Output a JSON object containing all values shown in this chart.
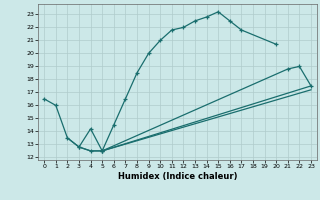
{
  "xlabel": "Humidex (Indice chaleur)",
  "background_color": "#cce8e8",
  "grid_color": "#b0cccc",
  "line_color": "#1a6e6e",
  "xlim": [
    -0.5,
    23.5
  ],
  "ylim": [
    11.8,
    23.8
  ],
  "xticks": [
    0,
    1,
    2,
    3,
    4,
    5,
    6,
    7,
    8,
    9,
    10,
    11,
    12,
    13,
    14,
    15,
    16,
    17,
    18,
    19,
    20,
    21,
    22,
    23
  ],
  "yticks": [
    12,
    13,
    14,
    15,
    16,
    17,
    18,
    19,
    20,
    21,
    22,
    23
  ],
  "s1x": [
    0,
    1,
    2,
    3,
    4,
    5,
    6,
    7,
    8,
    9,
    10,
    11,
    12,
    13,
    14,
    15,
    16,
    17,
    20
  ],
  "s1y": [
    16.5,
    16.0,
    13.5,
    12.8,
    14.2,
    12.5,
    14.5,
    16.5,
    18.5,
    20.0,
    21.0,
    21.8,
    22.0,
    22.5,
    22.8,
    23.2,
    22.5,
    21.8,
    20.7
  ],
  "s2x": [
    3,
    4,
    5,
    21,
    22,
    23
  ],
  "s2y": [
    12.8,
    12.5,
    12.5,
    18.8,
    19.0,
    17.5
  ],
  "s3x": [
    2,
    3,
    4,
    5,
    23
  ],
  "s3y": [
    13.5,
    12.8,
    12.5,
    12.5,
    17.5
  ],
  "s4x": [
    5,
    23
  ],
  "s4y": [
    12.5,
    17.2
  ]
}
